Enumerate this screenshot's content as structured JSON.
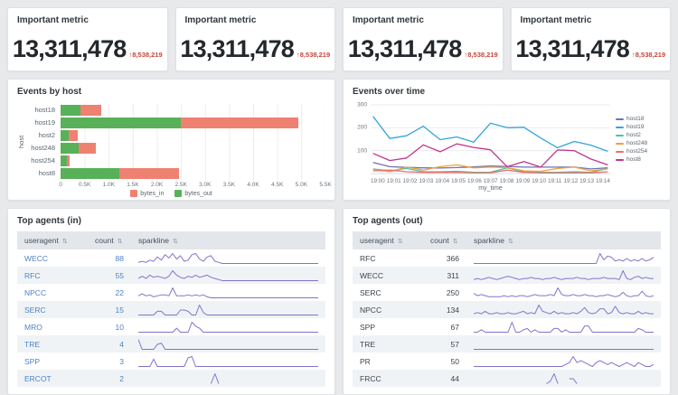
{
  "colors": {
    "bytes_in": "#ef8172",
    "bytes_out": "#58b158",
    "sparkline": "#8373cb",
    "delta_red": "#c8453a",
    "link_blue": "#4d82c4"
  },
  "sort_icon": "⇅",
  "metrics": [
    {
      "title": "Important metric",
      "value": "13,311,478",
      "arrow": "↑",
      "delta": "8,538,219"
    },
    {
      "title": "Important metric",
      "value": "13,311,478",
      "arrow": "↑",
      "delta": "8,538,219"
    },
    {
      "title": "Important metric",
      "value": "13,311,478",
      "arrow": "↑",
      "delta": "8,538,219"
    },
    {
      "title": "Important metric",
      "value": "13,311,478",
      "arrow": "↑",
      "delta": "8,538,219"
    }
  ],
  "events_by_host": {
    "title": "Events by host",
    "type": "bar",
    "ylabel": "host",
    "xmax": 5500,
    "xticks": [
      "0",
      "0.5K",
      "1.0K",
      "1.5K",
      "2.0K",
      "2.5K",
      "3.0K",
      "3.5K",
      "4.0K",
      "4.5K",
      "5.0K",
      "5.5K"
    ],
    "legend": [
      {
        "label": "bytes_in",
        "color": "#ef8172"
      },
      {
        "label": "bytes_out",
        "color": "#58b158"
      }
    ],
    "rows": [
      {
        "host": "host18",
        "bytes_out": 410,
        "bytes_in": 430
      },
      {
        "host": "host19",
        "bytes_out": 2500,
        "bytes_in": 2430
      },
      {
        "host": "host2",
        "bytes_out": 170,
        "bytes_in": 180
      },
      {
        "host": "host248",
        "bytes_out": 370,
        "bytes_in": 360
      },
      {
        "host": "host254",
        "bytes_out": 125,
        "bytes_in": 55
      },
      {
        "host": "host8",
        "bytes_out": 1225,
        "bytes_in": 1235
      }
    ]
  },
  "events_over_time": {
    "title": "Events over time",
    "type": "line",
    "xlabel": "my_time",
    "ymax": 300,
    "yticks": [
      100,
      200,
      300
    ],
    "x": [
      "19:00",
      "19:01",
      "19:02",
      "19:03",
      "19:04",
      "19:05",
      "19:06",
      "19:07",
      "19:08",
      "19:09",
      "19:10",
      "19:11",
      "19:12",
      "19:13",
      "19:14"
    ],
    "series": [
      {
        "name": "host18",
        "color": "#7272b0",
        "values": [
          48,
          30,
          27,
          25,
          24,
          26,
          29,
          33,
          31,
          28,
          28,
          28,
          28,
          20,
          25
        ]
      },
      {
        "name": "host19",
        "color": "#31a6dd",
        "values": [
          250,
          153,
          165,
          207,
          148,
          160,
          137,
          220,
          200,
          202,
          155,
          113,
          140,
          124,
          97
        ]
      },
      {
        "name": "host2",
        "color": "#45c5ad",
        "values": [
          20,
          12,
          22,
          8,
          8,
          10,
          5,
          6,
          25,
          8,
          5,
          5,
          8,
          5,
          22
        ]
      },
      {
        "name": "host248",
        "color": "#eda33c",
        "values": [
          18,
          8,
          28,
          15,
          30,
          38,
          25,
          28,
          26,
          12,
          10,
          22,
          28,
          12,
          20
        ]
      },
      {
        "name": "host254",
        "color": "#ed6f6b",
        "values": [
          12,
          15,
          8,
          5,
          5,
          5,
          3,
          3,
          15,
          5,
          3,
          3,
          3,
          3,
          8
        ]
      },
      {
        "name": "host8",
        "color": "#c0348c",
        "values": [
          88,
          57,
          68,
          125,
          95,
          130,
          114,
          104,
          30,
          52,
          28,
          103,
          100,
          63,
          38
        ]
      }
    ]
  },
  "top_agents_in": {
    "title": "Top agents (in)",
    "columns": [
      "useragent",
      "count",
      "sparkline"
    ],
    "rows": [
      {
        "agent": "WECC",
        "count": 88,
        "spark": [
          1,
          2,
          1,
          3,
          2,
          6,
          3,
          8,
          5,
          9,
          4,
          7,
          2,
          3,
          8,
          9,
          4,
          2,
          6,
          7,
          2,
          1,
          0,
          0,
          0,
          0,
          0,
          0,
          0,
          0,
          0,
          0,
          0,
          0,
          0,
          0,
          0,
          0,
          0,
          0,
          0,
          0,
          0,
          0,
          0,
          0,
          0,
          0
        ]
      },
      {
        "agent": "RFC",
        "count": 55,
        "spark": [
          2,
          4,
          2,
          5,
          3,
          4,
          3,
          2,
          4,
          9,
          5,
          3,
          2,
          4,
          3,
          5,
          3,
          4,
          5,
          3,
          2,
          1,
          0,
          0,
          0,
          0,
          0,
          0,
          0,
          0,
          0,
          0,
          0,
          0,
          0,
          0,
          0,
          0,
          0,
          0,
          0,
          0,
          0,
          0,
          0,
          0,
          0,
          0
        ]
      },
      {
        "agent": "NPCC",
        "count": 22,
        "spark": [
          2,
          4,
          2,
          3,
          1,
          2,
          3,
          3,
          2,
          10,
          2,
          2,
          2,
          3,
          2,
          3,
          2,
          3,
          1,
          0,
          0,
          0,
          0,
          0,
          0,
          0,
          0,
          0,
          0,
          0,
          0,
          0,
          0,
          0,
          0,
          0,
          0,
          0,
          0,
          0,
          0,
          0,
          0,
          0,
          0,
          0,
          0,
          0
        ]
      },
      {
        "agent": "SERC",
        "count": 15,
        "spark": [
          0,
          0,
          0,
          0,
          0,
          3,
          3,
          0,
          0,
          0,
          0,
          4,
          4,
          3,
          0,
          0,
          8,
          2,
          0,
          0,
          0,
          0,
          0,
          0,
          0,
          0,
          0,
          0,
          0,
          0,
          0,
          0,
          0,
          0,
          0,
          0,
          0,
          0,
          0,
          0,
          0,
          0,
          0,
          0,
          0,
          0,
          0,
          0
        ]
      },
      {
        "agent": "MRO",
        "count": 10,
        "spark": [
          0,
          0,
          0,
          0,
          0,
          0,
          0,
          0,
          0,
          0,
          2,
          0,
          0,
          0,
          5,
          3,
          2,
          0,
          0,
          0,
          0,
          0,
          0,
          0,
          0,
          0,
          0,
          0,
          0,
          0,
          0,
          0,
          0,
          0,
          0,
          0,
          0,
          0,
          0,
          0,
          0,
          0,
          0,
          0,
          0,
          0,
          0,
          0
        ]
      },
      {
        "agent": "TRE",
        "count": 4,
        "spark": [
          8,
          0,
          0,
          0,
          0,
          4,
          5,
          0,
          0,
          0,
          0,
          0,
          0,
          0,
          0,
          0,
          0,
          0,
          0,
          0,
          0,
          0,
          0,
          0,
          0,
          0,
          0,
          0,
          0,
          0,
          0,
          0,
          0,
          0,
          0,
          0,
          0,
          0,
          0,
          0,
          0,
          0,
          0,
          0,
          0,
          0,
          0,
          0
        ]
      },
      {
        "agent": "SPP",
        "count": 3,
        "spark": [
          0,
          0,
          0,
          0,
          6,
          0,
          0,
          0,
          0,
          0,
          0,
          0,
          0,
          7,
          8,
          0,
          0,
          0,
          0,
          0,
          0,
          0,
          0,
          0,
          0,
          0,
          0,
          0,
          0,
          0,
          0,
          0,
          0,
          0,
          0,
          0,
          0,
          0,
          0,
          0,
          0,
          0,
          0,
          0,
          0,
          0,
          0,
          0
        ]
      },
      {
        "agent": "ERCOT",
        "count": 2,
        "spark": [
          null,
          null,
          null,
          null,
          null,
          null,
          null,
          null,
          null,
          null,
          null,
          null,
          null,
          null,
          null,
          null,
          null,
          null,
          null,
          0,
          5,
          0,
          null,
          null,
          null,
          null,
          null,
          null,
          null,
          null,
          null,
          null,
          null,
          null,
          null,
          null,
          null,
          null,
          null,
          null,
          null,
          null,
          null,
          null,
          null,
          null,
          null,
          null
        ]
      }
    ]
  },
  "top_agents_out": {
    "title": "Top agents (out)",
    "columns": [
      "useragent",
      "count",
      "sparkline"
    ],
    "rows": [
      {
        "agent": "RFC",
        "count": 366,
        "spark": [
          0,
          0,
          0,
          0,
          0,
          0,
          0,
          0,
          0,
          0,
          0,
          0,
          0,
          0,
          0,
          0,
          0,
          0,
          0,
          0,
          0,
          0,
          0,
          0,
          0,
          0,
          0,
          0,
          0,
          0,
          0,
          0,
          0,
          8,
          3,
          6,
          5,
          2,
          3,
          2,
          4,
          2,
          3,
          2,
          4,
          2,
          3,
          5
        ]
      },
      {
        "agent": "WECC",
        "count": 311,
        "spark": [
          1,
          2,
          1,
          2,
          3,
          2,
          1,
          2,
          3,
          4,
          3,
          2,
          1,
          2,
          2,
          3,
          2,
          2,
          1,
          2,
          2,
          3,
          2,
          1,
          2,
          2,
          2,
          3,
          2,
          2,
          1,
          2,
          2,
          2,
          3,
          2,
          2,
          2,
          1,
          9,
          2,
          1,
          3,
          4,
          2,
          3,
          2,
          2
        ]
      },
      {
        "agent": "SERC",
        "count": 250,
        "spark": [
          4,
          2,
          3,
          2,
          1,
          1,
          1,
          1,
          2,
          1,
          2,
          1,
          2,
          2,
          1,
          2,
          3,
          2,
          2,
          2,
          3,
          2,
          9,
          3,
          2,
          2,
          3,
          2,
          2,
          3,
          2,
          2,
          1,
          2,
          2,
          3,
          2,
          1,
          2,
          5,
          2,
          1,
          2,
          2,
          6,
          2,
          1,
          2
        ]
      },
      {
        "agent": "NPCC",
        "count": 134,
        "spark": [
          1,
          2,
          1,
          3,
          1,
          1,
          2,
          1,
          1,
          2,
          1,
          1,
          2,
          3,
          1,
          2,
          1,
          8,
          3,
          2,
          1,
          3,
          1,
          2,
          1,
          1,
          2,
          1,
          3,
          6,
          2,
          1,
          2,
          5,
          5,
          1,
          2,
          7,
          2,
          1,
          2,
          1,
          1,
          3,
          1,
          2,
          1,
          1
        ]
      },
      {
        "agent": "SPP",
        "count": 67,
        "spark": [
          0,
          0,
          2,
          0,
          0,
          0,
          0,
          0,
          0,
          0,
          8,
          0,
          0,
          2,
          3,
          0,
          2,
          0,
          0,
          0,
          0,
          3,
          3,
          0,
          2,
          0,
          0,
          0,
          0,
          5,
          5,
          0,
          0,
          0,
          0,
          0,
          0,
          0,
          0,
          0,
          0,
          0,
          0,
          3,
          2,
          0,
          0,
          0
        ]
      },
      {
        "agent": "TRE",
        "count": 57,
        "spark": [
          0,
          0,
          0,
          0,
          0,
          0,
          0,
          0,
          0,
          0,
          0,
          0,
          0,
          0,
          0,
          0,
          0,
          0,
          0,
          0,
          0,
          0,
          0,
          0,
          0,
          0,
          0,
          0,
          0,
          0,
          0,
          0,
          0,
          0,
          0,
          0,
          0,
          0,
          0,
          0,
          0,
          0,
          0,
          0,
          0,
          0,
          0,
          0
        ]
      },
      {
        "agent": "PR",
        "count": 50,
        "spark": [
          0,
          0,
          0,
          0,
          0,
          0,
          0,
          0,
          0,
          0,
          0,
          0,
          0,
          0,
          0,
          0,
          0,
          0,
          0,
          0,
          0,
          0,
          0,
          0,
          1,
          2,
          5,
          2,
          3,
          2,
          1,
          0,
          2,
          3,
          2,
          1,
          2,
          1,
          0,
          1,
          2,
          1,
          0,
          2,
          1,
          0,
          0,
          1
        ]
      },
      {
        "agent": "FRCC",
        "count": 44,
        "spark": [
          null,
          null,
          null,
          null,
          null,
          null,
          null,
          null,
          null,
          null,
          null,
          null,
          null,
          null,
          null,
          null,
          null,
          null,
          null,
          0,
          1,
          4,
          0,
          null,
          null,
          2,
          2,
          0,
          null,
          null,
          null,
          null,
          null,
          null,
          null,
          null,
          null,
          null,
          null,
          null,
          null,
          null,
          null,
          null,
          null,
          null,
          null,
          null
        ]
      }
    ]
  }
}
